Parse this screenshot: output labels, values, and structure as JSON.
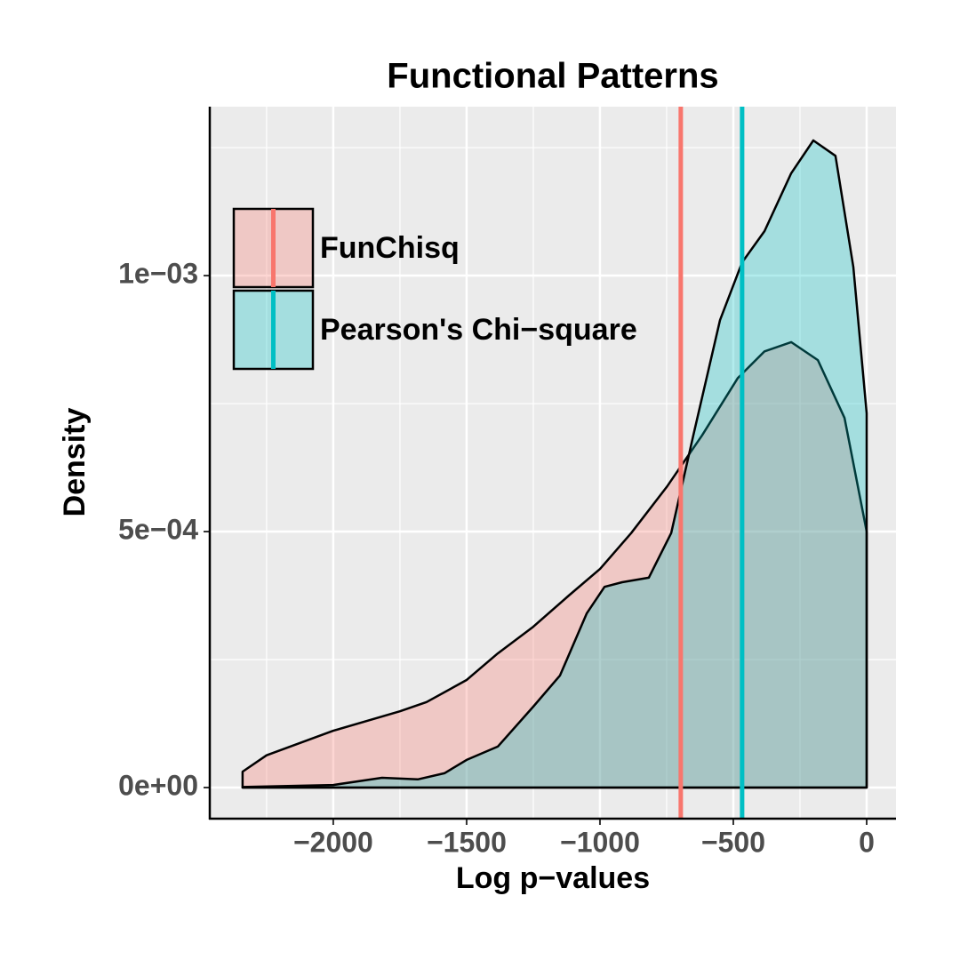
{
  "chart_data": {
    "type": "density",
    "title": "Functional Patterns",
    "x_label": "Log p−values",
    "y_label": "Density",
    "xlim": [
      -2463,
      110
    ],
    "ylim": [
      -6.08e-05,
      0.00133
    ],
    "xticks": [
      {
        "value": -2000,
        "label": "−2000"
      },
      {
        "value": -1500,
        "label": "−1500"
      },
      {
        "value": -1000,
        "label": "−1000"
      },
      {
        "value": -500,
        "label": "−500"
      },
      0
    ],
    "yticks": [
      {
        "value": 0,
        "label": "0e+00"
      },
      {
        "value": 0.0005,
        "label": "5e−04"
      },
      {
        "value": 0.001,
        "label": "1e−03"
      }
    ],
    "x_minor_ticks": [
      -2250,
      -1750,
      -1250,
      -750,
      -250
    ],
    "y_minor_ticks": [
      0.00025,
      0.00075,
      0.00125
    ],
    "grid": true,
    "legend": "top-left",
    "series": [
      {
        "name": "FunChisq",
        "color": "#F8766D",
        "vline": -697,
        "x": [
          -2340,
          -2250,
          -2000,
          -1750,
          -1650,
          -1500,
          -1383,
          -1250,
          -1117,
          -1000,
          -883,
          -750,
          -617,
          -483,
          -383,
          -283,
          -183,
          -83,
          0
        ],
        "values": [
          3.1e-05,
          6.3e-05,
          0.000111,
          0.000149,
          0.000167,
          0.00021,
          0.000262,
          0.000314,
          0.000375,
          0.000427,
          0.000497,
          0.000587,
          0.000688,
          0.0008,
          0.000852,
          0.00087,
          0.000835,
          0.000722,
          0.0005
        ]
      },
      {
        "name": "Pearson's Chi−square",
        "color": "#00BFC4",
        "vline": -467,
        "x": [
          -2340,
          -2000,
          -1817,
          -1683,
          -1583,
          -1500,
          -1383,
          -1250,
          -1150,
          -1050,
          -983,
          -917,
          -817,
          -733,
          -650,
          -550,
          -467,
          -383,
          -283,
          -200,
          -117,
          -50,
          0
        ],
        "values": [
          1e-06,
          5e-06,
          1.9e-05,
          1.6e-05,
          2.8e-05,
          5.4e-05,
          8e-05,
          0.000158,
          0.000219,
          0.00034,
          0.000392,
          0.000401,
          0.00041,
          0.000497,
          0.000688,
          0.000913,
          0.001026,
          0.001087,
          0.0012,
          0.001264,
          0.001234,
          0.001017,
          0.000731
        ]
      }
    ]
  }
}
